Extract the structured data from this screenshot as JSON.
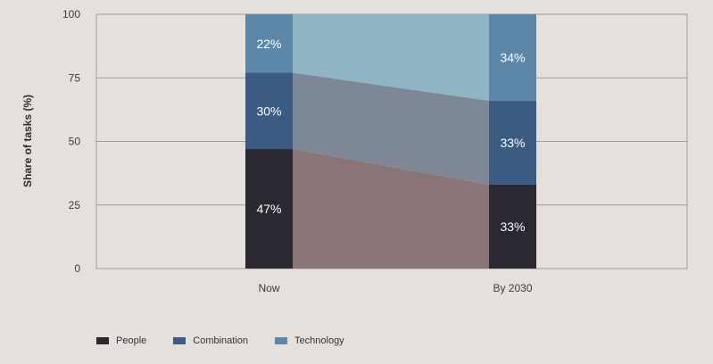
{
  "chart_data": {
    "type": "bar",
    "stacked": true,
    "categories": [
      "Now",
      "By 2030"
    ],
    "series": [
      {
        "name": "People",
        "values": [
          47,
          33
        ],
        "labels": [
          "47%",
          "33%"
        ],
        "color": "#2a2830"
      },
      {
        "name": "Combination",
        "values": [
          30,
          33
        ],
        "labels": [
          "30%",
          "33%"
        ],
        "color": "#3b5b82"
      },
      {
        "name": "Technology",
        "values": [
          22,
          34
        ],
        "labels": [
          "22%",
          "34%"
        ],
        "color": "#5d87a9"
      }
    ],
    "ylabel": "Share of tasks (%)",
    "xlabel": "",
    "ylim": [
      0,
      100
    ],
    "yticks": [
      0,
      25,
      50,
      75,
      100
    ],
    "grid": true,
    "legend_position": "bottom-left",
    "connector_colors": {
      "people": "#8a7478",
      "combination": "#7e8796",
      "technology": "#8fb4c4"
    },
    "background_color": "#e6e0dc",
    "gridline_color": "#a89a98"
  }
}
